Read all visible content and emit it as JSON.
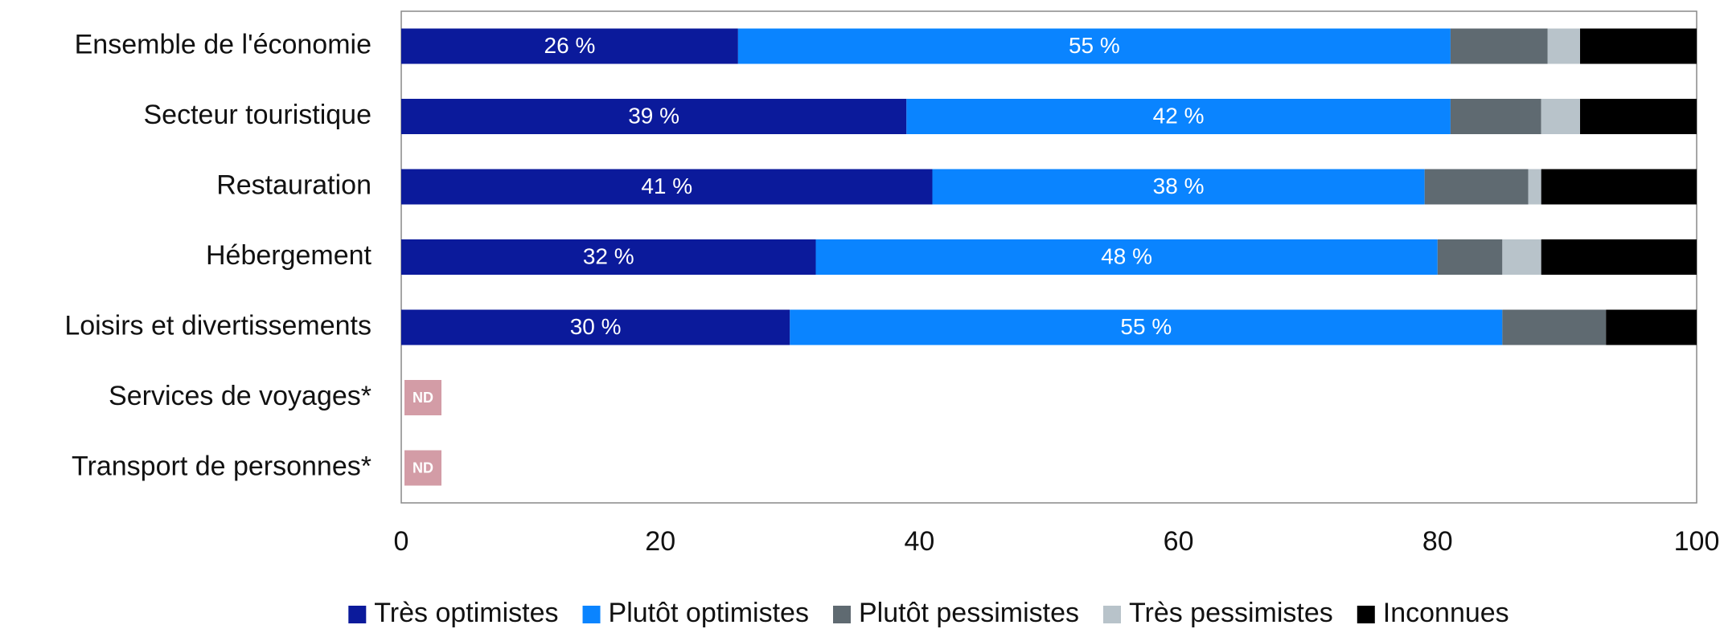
{
  "chart_data": {
    "type": "stacked-barh",
    "categories": [
      "Ensemble de l'économie",
      "Secteur touristique",
      "Restauration",
      "Hébergement",
      "Loisirs et divertissements",
      "Services de voyages*",
      "Transport de personnes*"
    ],
    "series": [
      {
        "name": "Très optimistes",
        "color": "#0b1a9b",
        "values": [
          26,
          39,
          41,
          32,
          30,
          null,
          null
        ],
        "value_labels": [
          "26 %",
          "39 %",
          "41 %",
          "32 %",
          "30 %",
          null,
          null
        ]
      },
      {
        "name": "Plutôt optimistes",
        "color": "#0a84ff",
        "values": [
          55,
          42,
          38,
          48,
          55,
          null,
          null
        ],
        "value_labels": [
          "55 %",
          "42 %",
          "38 %",
          "48 %",
          "55 %",
          null,
          null
        ]
      },
      {
        "name": "Plutôt pessimistes",
        "color": "#5f6a71",
        "values": [
          7.5,
          7,
          8,
          5,
          8,
          null,
          null
        ]
      },
      {
        "name": "Très pessimistes",
        "color": "#b8c3ca",
        "values": [
          2.5,
          3,
          1,
          3,
          0,
          null,
          null
        ]
      },
      {
        "name": "Inconnues",
        "color": "#000000",
        "values": [
          9,
          9,
          12,
          12,
          7,
          null,
          null
        ]
      }
    ],
    "missing": {
      "label": "ND",
      "color": "#d39ca6"
    },
    "xlim": [
      0,
      100
    ],
    "xticks": [
      0,
      20,
      40,
      60,
      80,
      100
    ],
    "legend": "bottom"
  }
}
